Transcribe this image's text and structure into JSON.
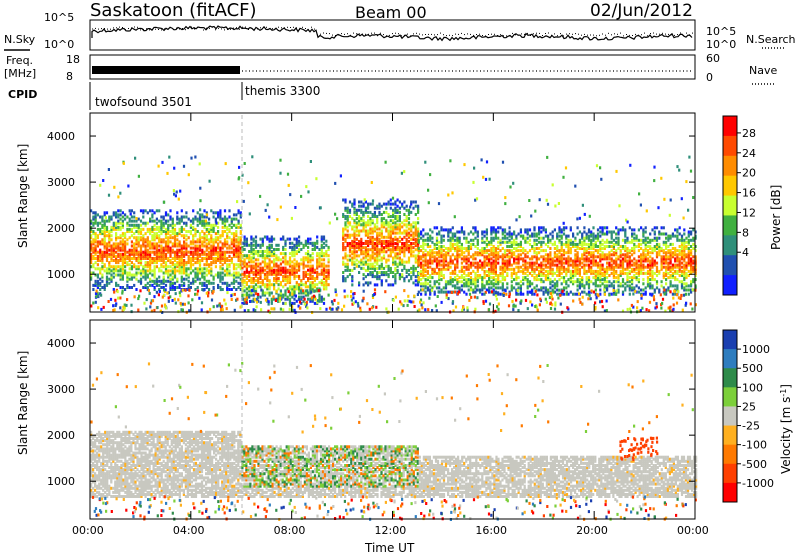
{
  "header": {
    "station": "Saskatoon (fitACF)",
    "beam": "Beam 00",
    "date": "02/Jun/2012"
  },
  "top_panels": {
    "nsky_label": "N.Sky",
    "nsearch_label": "N.Search",
    "freq_label_1": "Freq.",
    "freq_label_2": "[MHz]",
    "nave_label": "Nave",
    "cpid_label": "CPID",
    "noise_ticks": [
      "10^5",
      "10^0"
    ],
    "freq_ticks": [
      "18",
      "8"
    ],
    "nave_ticks": [
      "60",
      "0"
    ],
    "cpid_segments": [
      {
        "name": "twofsound 3501",
        "start_h": 0,
        "end_h": 6
      },
      {
        "name": "themis 3300",
        "start_h": 6,
        "end_h": 24
      }
    ]
  },
  "chart_data": [
    {
      "type": "heatmap",
      "title": "Power",
      "ylabel": "Slant Range [km]",
      "ylim": [
        180,
        4500
      ],
      "y_ticks": [
        "4000",
        "3000",
        "2000",
        "1000"
      ],
      "xlim_hours": [
        0,
        24
      ],
      "colorbar": {
        "label": "Power [dB]",
        "ticks": [
          "28",
          "24",
          "20",
          "16",
          "12",
          "8",
          "4"
        ],
        "colors": [
          "#ff0000",
          "#ff4a00",
          "#ff8c00",
          "#ffc800",
          "#c8ff30",
          "#40b040",
          "#2f8f7a",
          "#2050b0",
          "#1020ff"
        ]
      },
      "scatter_bands": [
        {
          "start_h": 0,
          "end_h": 6,
          "range_km": [
            1000,
            2100
          ],
          "peak_db": 26
        },
        {
          "start_h": 6,
          "end_h": 9.5,
          "range_km": [
            700,
            1500
          ],
          "peak_db": 30
        },
        {
          "start_h": 10,
          "end_h": 13,
          "range_km": [
            1100,
            2300
          ],
          "peak_db": 24
        },
        {
          "start_h": 13,
          "end_h": 24,
          "range_km": [
            900,
            1700
          ],
          "peak_db": 26
        }
      ]
    },
    {
      "type": "heatmap",
      "title": "Velocity",
      "ylabel": "Slant Range [km]",
      "xlabel": "Time UT",
      "ylim": [
        180,
        4500
      ],
      "y_ticks": [
        "4000",
        "3000",
        "2000",
        "1000"
      ],
      "x_ticks": [
        "00:00",
        "04:00",
        "08:00",
        "12:00",
        "16:00",
        "20:00",
        "00:00"
      ],
      "colorbar": {
        "label": "Velocity [m s^-1]",
        "ticks": [
          "1000",
          "500",
          "100",
          "25",
          "-25",
          "-100",
          "-500",
          "-1000"
        ],
        "colors": [
          "#1a3fb0",
          "#2e7dbf",
          "#2e8b4a",
          "#7ccf3a",
          "#c8c8c0",
          "#ffb020",
          "#ff7a00",
          "#ff4000",
          "#ff0000"
        ]
      }
    }
  ]
}
